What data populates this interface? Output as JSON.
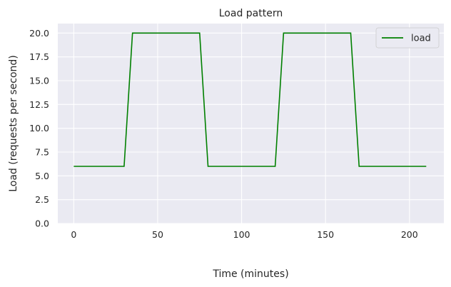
{
  "chart_data": {
    "type": "line",
    "title": "Load pattern",
    "xlabel": "Time (minutes)",
    "ylabel": "Load (requests per second)",
    "xlim": [
      -9.5,
      220.5
    ],
    "ylim": [
      0,
      21
    ],
    "x_ticks": [
      0,
      50,
      100,
      150,
      200
    ],
    "y_ticks": [
      0,
      2.5,
      5,
      7.5,
      10,
      12.5,
      15,
      17.5,
      20
    ],
    "y_tick_labels": [
      "0.0",
      "2.5",
      "5.0",
      "7.5",
      "10.0",
      "12.5",
      "15.0",
      "17.5",
      "20.0"
    ],
    "grid": true,
    "legend_position": "top-right",
    "series": [
      {
        "name": "load",
        "color": "#008000",
        "x": [
          0,
          30,
          35,
          75,
          80,
          120,
          125,
          165,
          170,
          210
        ],
        "y": [
          6,
          6,
          20,
          20,
          6,
          6,
          20,
          20,
          6,
          6
        ]
      }
    ]
  },
  "theme": {
    "plot_background": "#eaeaf2",
    "grid_color": "#ffffff",
    "text_color": "#262626"
  }
}
